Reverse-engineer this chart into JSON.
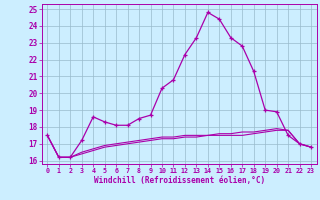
{
  "x": [
    0,
    1,
    2,
    3,
    4,
    5,
    6,
    7,
    8,
    9,
    10,
    11,
    12,
    13,
    14,
    15,
    16,
    17,
    18,
    19,
    20,
    21,
    22,
    23
  ],
  "line_main": [
    17.5,
    16.2,
    16.2,
    17.2,
    18.6,
    18.3,
    18.1,
    18.1,
    18.5,
    18.7,
    20.3,
    20.8,
    22.3,
    23.3,
    24.8,
    24.4,
    23.3,
    22.8,
    21.3,
    19.0,
    18.9,
    17.5,
    17.0,
    16.8
  ],
  "line_low1": [
    17.5,
    16.2,
    16.2,
    16.4,
    16.6,
    16.8,
    16.9,
    17.0,
    17.1,
    17.2,
    17.3,
    17.3,
    17.4,
    17.4,
    17.5,
    17.5,
    17.5,
    17.5,
    17.6,
    17.7,
    17.8,
    17.8,
    17.0,
    16.8
  ],
  "line_low2": [
    17.5,
    16.2,
    16.2,
    16.5,
    16.7,
    16.9,
    17.0,
    17.1,
    17.2,
    17.3,
    17.4,
    17.4,
    17.5,
    17.5,
    17.5,
    17.6,
    17.6,
    17.7,
    17.7,
    17.8,
    17.9,
    17.8,
    17.0,
    16.8
  ],
  "bg_color": "#cceeff",
  "line_color": "#aa00aa",
  "grid_color": "#99bbcc",
  "xlabel": "Windchill (Refroidissement éolien,°C)",
  "xlim": [
    -0.5,
    23.5
  ],
  "ylim": [
    15.8,
    25.3
  ],
  "yticks": [
    16,
    17,
    18,
    19,
    20,
    21,
    22,
    23,
    24,
    25
  ],
  "xticks": [
    0,
    1,
    2,
    3,
    4,
    5,
    6,
    7,
    8,
    9,
    10,
    11,
    12,
    13,
    14,
    15,
    16,
    17,
    18,
    19,
    20,
    21,
    22,
    23
  ]
}
